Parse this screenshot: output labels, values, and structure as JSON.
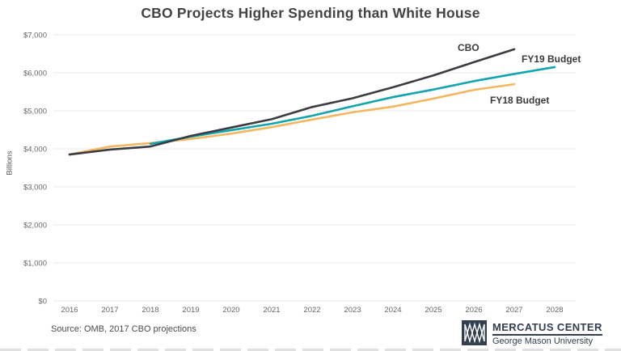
{
  "title": "CBO Projects Higher Spending than White House",
  "source_note": "Source: OMB, 2017 CBO projections",
  "logo": {
    "line1": "MERCATUS CENTER",
    "line2": "George Mason University",
    "color": "#333e4e",
    "icon": "mercatus-mm-monogram"
  },
  "chart_data": {
    "type": "line",
    "title": "CBO Projects Higher Spending than White House",
    "xlabel": "",
    "ylabel": "Billions",
    "ylim": [
      0,
      7000
    ],
    "ytick_step": 1000,
    "ytick_labels": [
      "$0",
      "$1,000",
      "$2,000",
      "$3,000",
      "$4,000",
      "$5,000",
      "$6,000",
      "$7,000"
    ],
    "x_years": [
      2016,
      2017,
      2018,
      2019,
      2020,
      2021,
      2022,
      2023,
      2024,
      2025,
      2026,
      2027,
      2028
    ],
    "grid": "horizontal-only",
    "legend_position": "inline-labels",
    "axis_text_color": "#666666",
    "gridline_color": "#eaeaea",
    "series": [
      {
        "name": "CBO",
        "color": "#3a3c41",
        "x": [
          2016,
          2017,
          2018,
          2019,
          2020,
          2021,
          2022,
          2023,
          2024,
          2025,
          2026,
          2027
        ],
        "values": [
          3850,
          3980,
          4060,
          4340,
          4560,
          4780,
          5100,
          5330,
          5620,
          5930,
          6280,
          6620
        ]
      },
      {
        "name": "FY19 Budget",
        "color": "#12a5ab",
        "x": [
          2018,
          2019,
          2020,
          2021,
          2022,
          2023,
          2024,
          2025,
          2026,
          2027,
          2028
        ],
        "values": [
          4130,
          4320,
          4490,
          4660,
          4870,
          5120,
          5360,
          5560,
          5780,
          5970,
          6150
        ]
      },
      {
        "name": "FY18 Budget",
        "color": "#f3b75f",
        "x": [
          2016,
          2017,
          2018,
          2019,
          2020,
          2021,
          2022,
          2023,
          2024,
          2025,
          2026,
          2027
        ],
        "values": [
          3850,
          4060,
          4150,
          4260,
          4400,
          4570,
          4770,
          4960,
          5110,
          5320,
          5550,
          5700
        ]
      }
    ]
  }
}
